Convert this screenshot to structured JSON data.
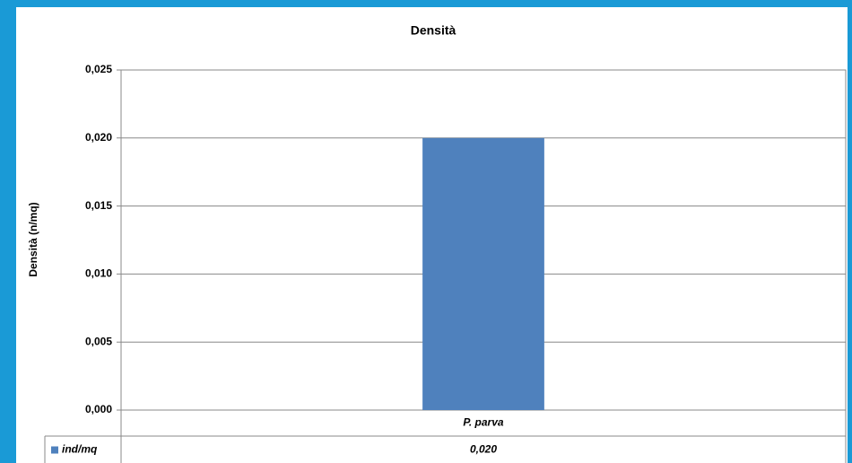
{
  "chart_data": {
    "type": "bar",
    "title": "Densità",
    "y_label": "Densità (n/mq)",
    "categories": [
      "P. parva"
    ],
    "series": [
      {
        "name": "ind/mq",
        "color": "#4f81bd",
        "values": [
          0.02
        ],
        "value_labels": [
          "0,020"
        ]
      }
    ],
    "ylim": [
      0,
      0.025
    ],
    "yticks": [
      {
        "value": 0,
        "label": "0,000"
      },
      {
        "value": 0.005,
        "label": "0,005"
      },
      {
        "value": 0.01,
        "label": "0,010"
      },
      {
        "value": 0.015,
        "label": "0,015"
      },
      {
        "value": 0.02,
        "label": "0,020"
      },
      {
        "value": 0.025,
        "label": "0,025"
      }
    ],
    "grid": true,
    "data_table": true
  }
}
